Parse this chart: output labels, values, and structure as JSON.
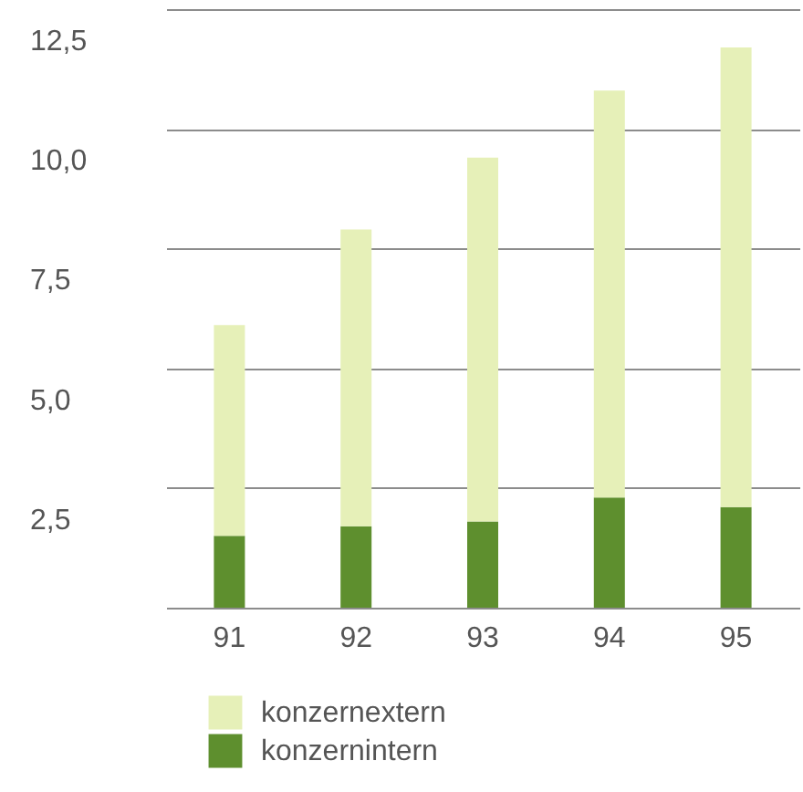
{
  "chart_data": {
    "type": "bar",
    "stacked": true,
    "categories": [
      "91",
      "92",
      "93",
      "94",
      "95"
    ],
    "series": [
      {
        "name": "konzernintern",
        "color": "#5e8f2e",
        "values": [
          1.5,
          1.7,
          1.8,
          2.3,
          2.1
        ]
      },
      {
        "name": "konzernextern",
        "color": "#e6f0b8",
        "values": [
          4.4,
          6.2,
          7.6,
          8.5,
          9.6
        ]
      }
    ],
    "ylim": [
      0,
      12.5
    ],
    "yticks": [
      {
        "value": 0,
        "label": null
      },
      {
        "value": 2.5,
        "label": "2,5"
      },
      {
        "value": 5,
        "label": "5,0"
      },
      {
        "value": 7.5,
        "label": "7,5"
      },
      {
        "value": 10,
        "label": "10,0"
      },
      {
        "value": 12.5,
        "label": "12,5"
      }
    ],
    "grid": "y",
    "legend": "bottom"
  }
}
